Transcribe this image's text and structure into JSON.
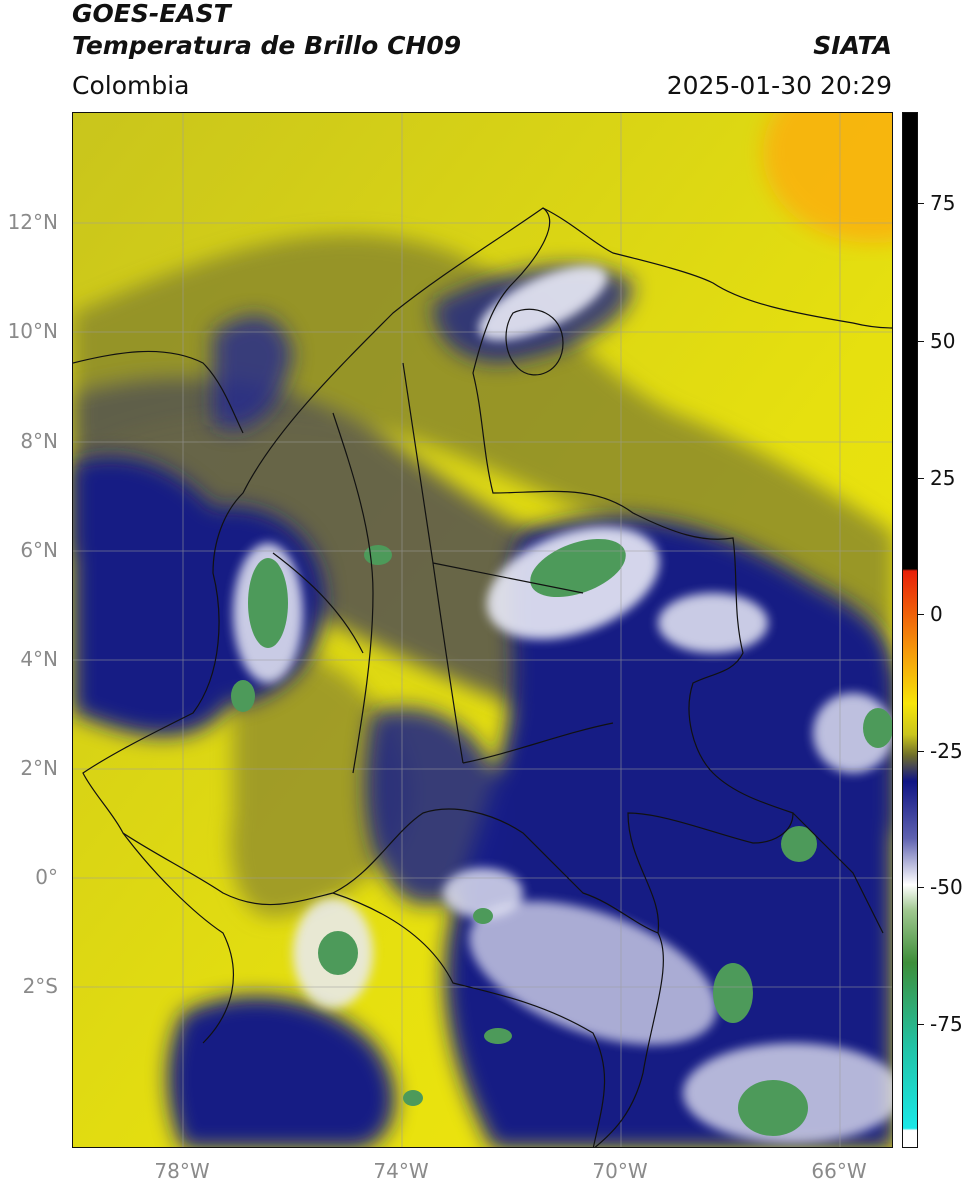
{
  "header": {
    "satellite": "GOES-EAST",
    "product": "Temperatura de Brillo CH09",
    "source": "SIATA",
    "region": "Colombia",
    "timestamp": "2025-01-30 20:29"
  },
  "axes": {
    "lat_labels": [
      "12°N",
      "10°N",
      "8°N",
      "6°N",
      "4°N",
      "2°N",
      "0°",
      "2°S"
    ],
    "lon_labels": [
      "78°W",
      "74°W",
      "70°W",
      "66°W"
    ]
  },
  "colorbar": {
    "labels": [
      "75",
      "50",
      "25",
      "0",
      "-25",
      "-50",
      "-75"
    ],
    "colors": {
      "black": "#000000",
      "red": "#e8200a",
      "orange": "#f59a0b",
      "yellow": "#f7e50a",
      "olive": "#6e6e2a",
      "gray": "#4a4a52",
      "navy": "#101585",
      "white": "#ffffff",
      "green": "#3e8f3a",
      "teal": "#22c2a4",
      "cyan": "#19e8e8"
    }
  },
  "map": {
    "colors": {
      "yellow": "#f2e80c",
      "olive_yellow": "#c9c51c",
      "olive": "#8b8a2c",
      "gray": "#5b5a4e",
      "navy": "#161d84",
      "white": "#e9eaf6",
      "green": "#4d9a5a",
      "orange": "#fbb010"
    }
  }
}
